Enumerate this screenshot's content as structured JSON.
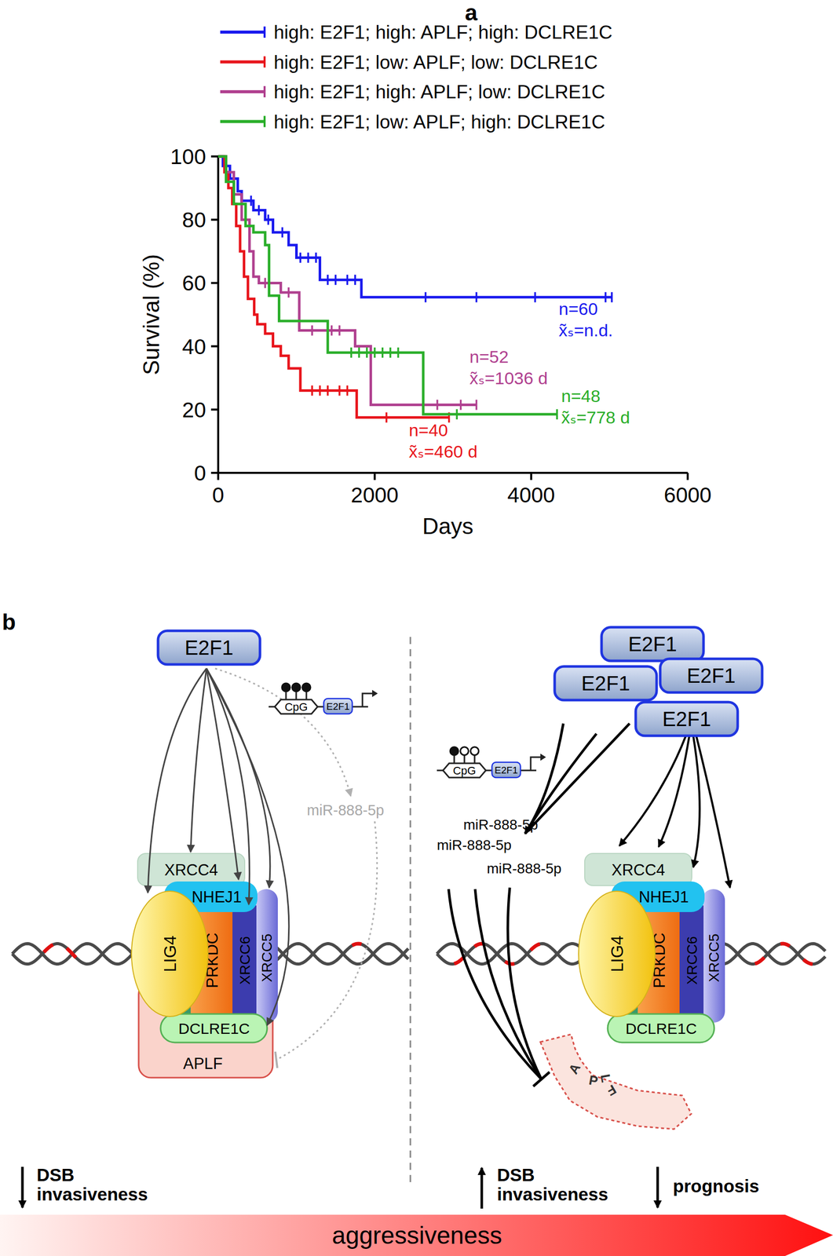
{
  "chart_data": {
    "type": "line",
    "panel_label": "a",
    "x_label": "Days",
    "y_label": "Survival (%)",
    "xlim": [
      0,
      6000
    ],
    "xticks": [
      0,
      2000,
      4000,
      6000
    ],
    "ylim": [
      0,
      100
    ],
    "yticks": [
      0,
      20,
      40,
      60,
      80,
      100
    ],
    "line_style": "step",
    "marker": "tick",
    "legend": "top",
    "series": [
      {
        "name": "high: E2F1; high: APLF; high: DCLRE1C",
        "color": "#1a1aee",
        "x": [
          0,
          60,
          150,
          250,
          300,
          450,
          600,
          700,
          900,
          1000,
          1300,
          1830,
          5030
        ],
        "values": [
          100,
          97,
          93,
          89,
          86,
          83,
          80,
          76,
          72,
          68,
          61,
          55.5,
          55.5
        ],
        "censored_x": [
          420,
          520,
          640,
          820,
          1050,
          1150,
          1250,
          1400,
          1500,
          1650,
          1750,
          2650,
          3300,
          4050,
          4950,
          5030
        ],
        "censored_values": [
          86,
          83,
          80,
          76,
          68,
          68,
          68,
          61,
          61,
          61,
          61,
          55.5,
          55.5,
          55.5,
          55.5,
          55.5
        ],
        "annotation": [
          "n=60",
          "x̃ₛ=n.d."
        ]
      },
      {
        "name": "high: E2F1; low: APLF; low: DCLRE1C",
        "color": "#e8151c",
        "x": [
          0,
          80,
          130,
          180,
          230,
          280,
          330,
          380,
          460,
          500,
          600,
          700,
          800,
          900,
          1050,
          1770,
          2950
        ],
        "values": [
          100,
          95,
          90,
          85,
          78,
          70,
          62,
          55,
          50,
          47,
          44,
          40,
          37,
          33,
          26,
          17.5,
          17.5
        ],
        "censored_x": [
          1200,
          1300,
          1400,
          1550,
          1650,
          2150,
          2950
        ],
        "censored_values": [
          26,
          26,
          26,
          26,
          26,
          17.5,
          17.5
        ],
        "annotation": [
          "n=40",
          "x̃ₛ=460 d"
        ]
      },
      {
        "name": "high: E2F1; high: APLF; low: DCLRE1C",
        "color": "#b0408f",
        "x": [
          0,
          100,
          200,
          300,
          400,
          450,
          520,
          800,
          1036,
          1750,
          1950,
          3300
        ],
        "values": [
          100,
          95,
          88,
          80,
          70,
          62,
          60,
          57,
          45,
          40,
          21.5,
          21.5
        ],
        "censored_x": [
          600,
          900,
          1200,
          1450,
          1550,
          2800,
          3100,
          3300
        ],
        "censored_values": [
          60,
          57,
          45,
          45,
          45,
          21.5,
          21.5,
          21.5
        ],
        "annotation": [
          "n=52",
          "x̃ₛ=1036 d"
        ]
      },
      {
        "name": "high: E2F1; low: APLF; high: DCLRE1C",
        "color": "#2aae2a",
        "x": [
          0,
          100,
          200,
          350,
          450,
          600,
          650,
          778,
          1400,
          2620,
          4330
        ],
        "values": [
          100,
          92,
          85,
          78,
          76,
          72,
          56,
          48,
          38,
          18.5,
          18.5
        ],
        "censored_x": [
          1700,
          1800,
          1900,
          2000,
          2100,
          2200,
          2300,
          3050,
          4330
        ],
        "censored_values": [
          38,
          38,
          38,
          38,
          38,
          38,
          38,
          18.5,
          18.5
        ],
        "annotation": [
          "n=48",
          "x̃ₛ=778 d"
        ]
      }
    ]
  },
  "diagram": {
    "panel_label": "b",
    "left": {
      "tf": [
        "E2F1"
      ],
      "promoter": {
        "site": "CpG",
        "tf": "E2F1",
        "methylated": [
          true,
          true,
          true
        ]
      },
      "mirna": [
        "miR-888-5p"
      ],
      "complex": [
        "XRCC4",
        "NHEJ1",
        "LIG4",
        "PRKDC",
        "XRCC6",
        "XRCC5",
        "DCLRE1C",
        "APLF"
      ],
      "effects": [
        {
          "direction": "down",
          "lines": [
            "DSB",
            "invasiveness"
          ]
        }
      ]
    },
    "right": {
      "tf": [
        "E2F1",
        "E2F1",
        "E2F1",
        "E2F1"
      ],
      "promoter": {
        "site": "CpG",
        "tf": "E2F1",
        "methylated": [
          true,
          false,
          false
        ]
      },
      "mirna": [
        "miR-888-5p",
        "miR-888-5p",
        "miR-888-5p"
      ],
      "complex": [
        "XRCC4",
        "NHEJ1",
        "LIG4",
        "PRKDC",
        "XRCC6",
        "XRCC5",
        "DCLRE1C"
      ],
      "degraded": "APLF",
      "effects": [
        {
          "direction": "up",
          "lines": [
            "DSB",
            "invasiveness"
          ]
        },
        {
          "direction": "down",
          "lines": [
            "prognosis"
          ]
        }
      ]
    },
    "gradient": "aggressiveness"
  }
}
